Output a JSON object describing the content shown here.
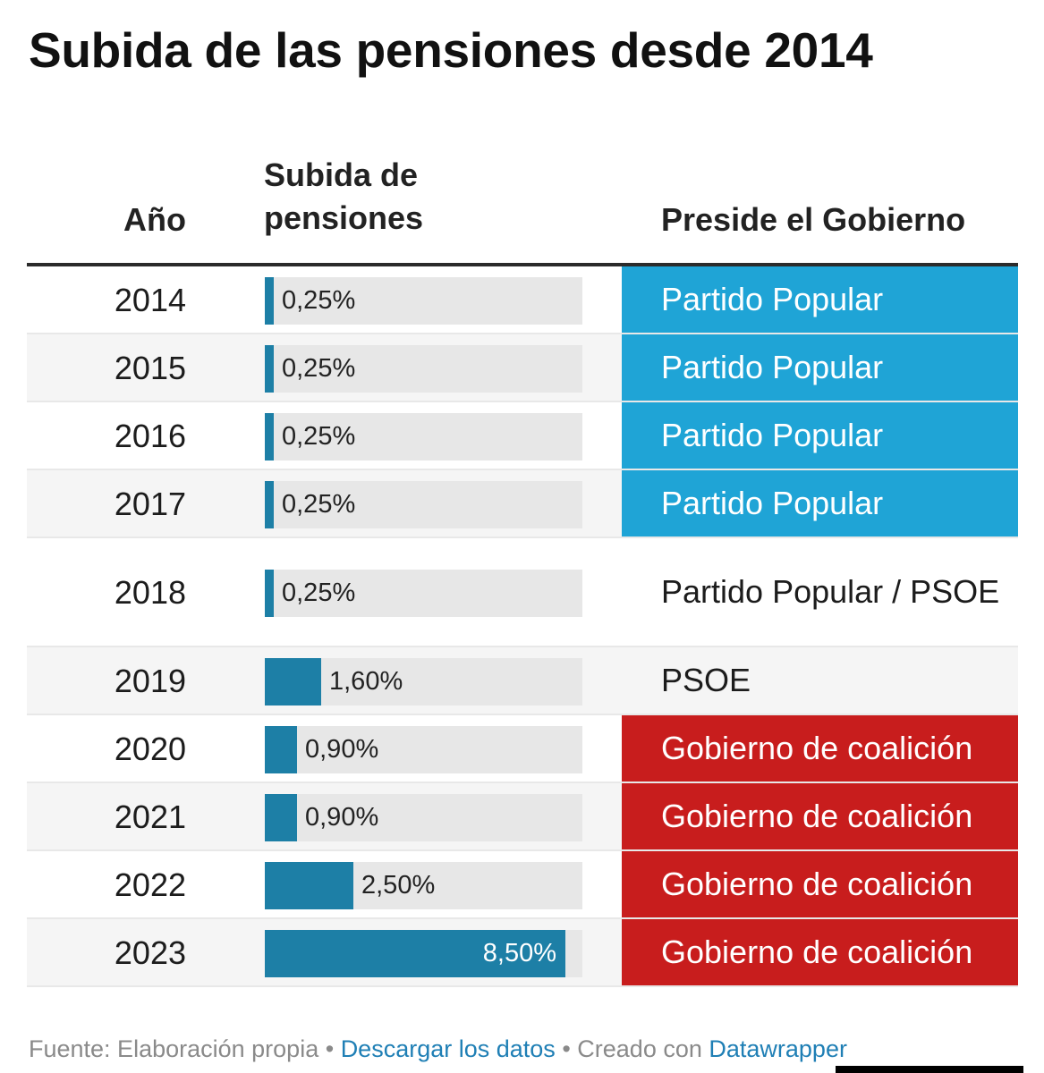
{
  "title": "Subida de las pensiones desde 2014",
  "headers": {
    "year": "Año",
    "raise_line1": "Subida de",
    "raise_line2": "pensiones",
    "government": "Preside el Gobierno"
  },
  "colors": {
    "bar": "#1d7fa6",
    "partido_popular": "#1fa4d6",
    "coalicion": "#c81d1d"
  },
  "chart_data": {
    "type": "table",
    "columns": [
      "Año",
      "Subida de pensiones",
      "Preside el Gobierno"
    ],
    "bar_max": 8.5,
    "rows": [
      {
        "year": "2014",
        "value": 0.25,
        "label": "0,25%",
        "government": "Partido Popular",
        "party": "pp"
      },
      {
        "year": "2015",
        "value": 0.25,
        "label": "0,25%",
        "government": "Partido Popular",
        "party": "pp"
      },
      {
        "year": "2016",
        "value": 0.25,
        "label": "0,25%",
        "government": "Partido Popular",
        "party": "pp"
      },
      {
        "year": "2017",
        "value": 0.25,
        "label": "0,25%",
        "government": "Partido Popular",
        "party": "pp"
      },
      {
        "year": "2018",
        "value": 0.25,
        "label": "0,25%",
        "government": "Partido Popular / PSOE",
        "party": "none"
      },
      {
        "year": "2019",
        "value": 1.6,
        "label": "1,60%",
        "government": "PSOE",
        "party": "none"
      },
      {
        "year": "2020",
        "value": 0.9,
        "label": "0,90%",
        "government": "Gobierno de coalición",
        "party": "coal"
      },
      {
        "year": "2021",
        "value": 0.9,
        "label": "0,90%",
        "government": "Gobierno de coalición",
        "party": "coal"
      },
      {
        "year": "2022",
        "value": 2.5,
        "label": "2,50%",
        "government": "Gobierno de coalición",
        "party": "coal"
      },
      {
        "year": "2023",
        "value": 8.5,
        "label": "8,50%",
        "government": "Gobierno de coalición",
        "party": "coal"
      }
    ]
  },
  "footer": {
    "source": "Fuente: Elaboración propia",
    "separator": " • ",
    "download": "Descargar los datos",
    "created_with": "Creado con ",
    "tool": "Datawrapper"
  }
}
